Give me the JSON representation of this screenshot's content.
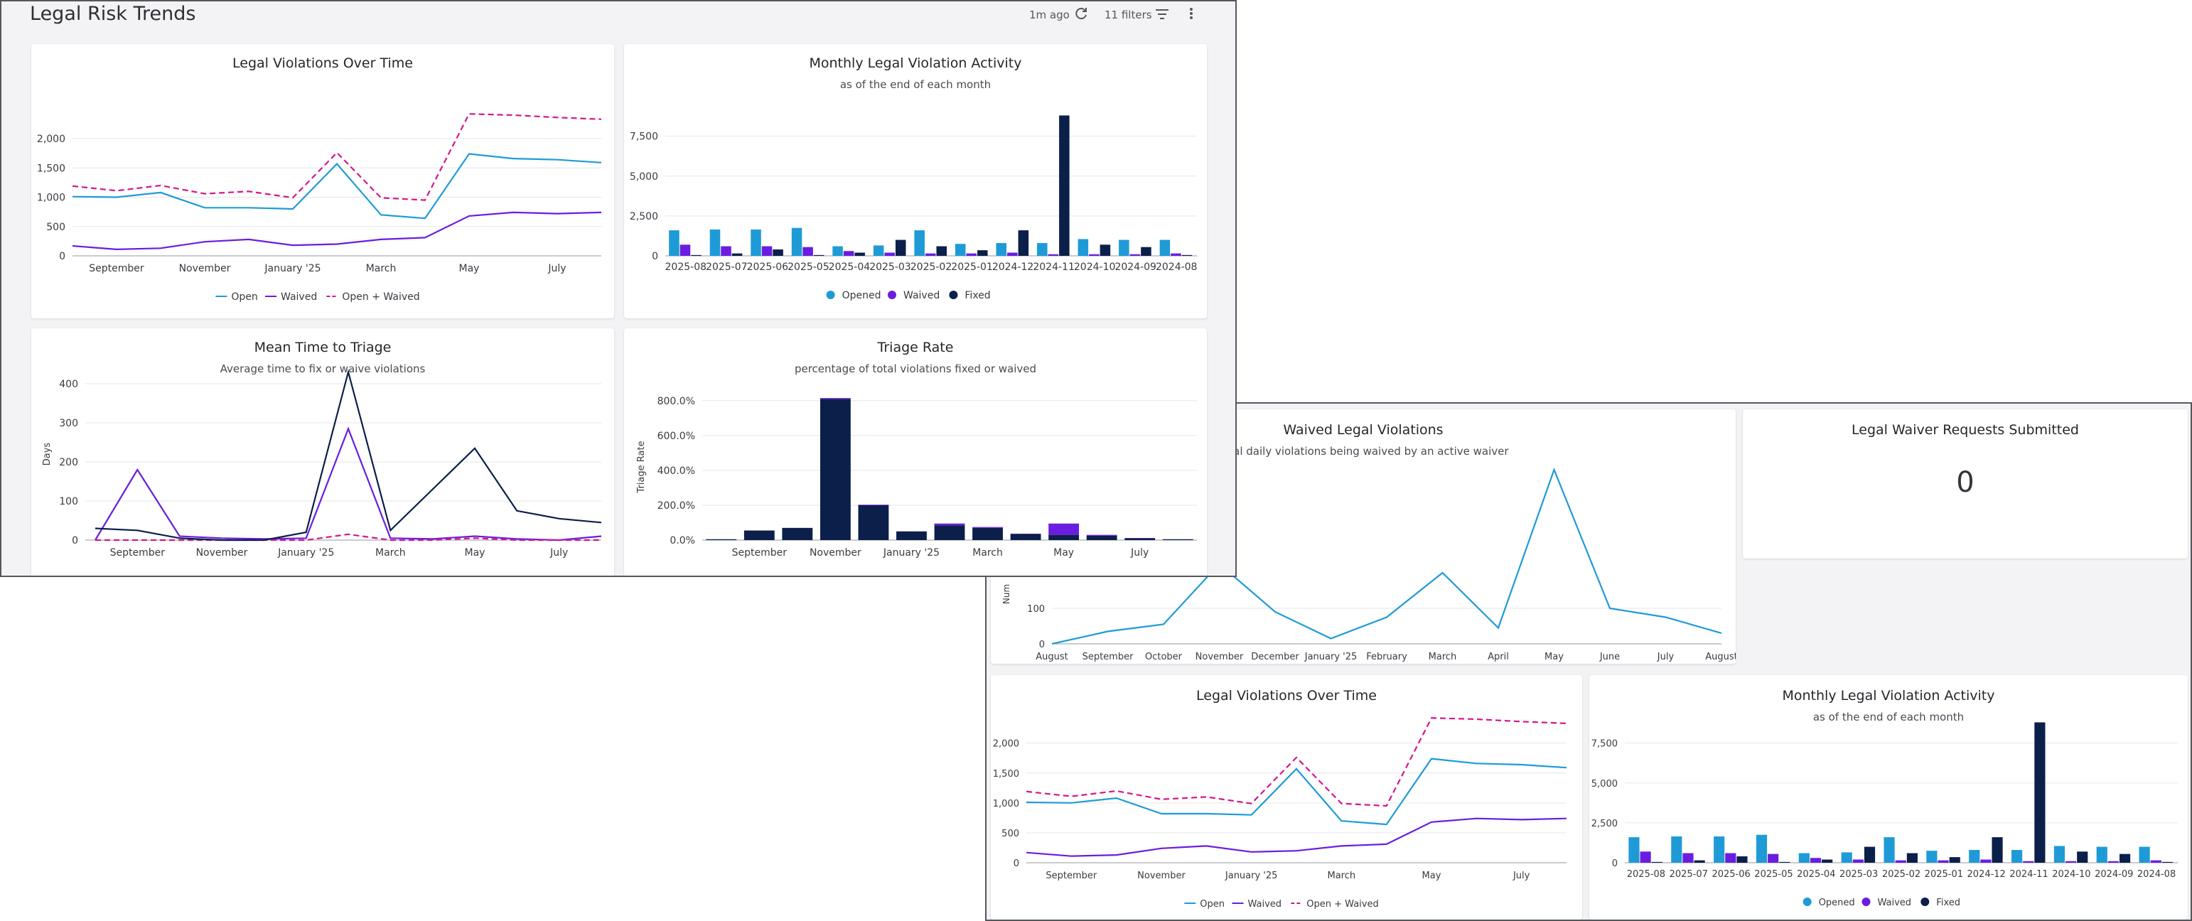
{
  "window_a": {
    "title": "Legal Risk Trends",
    "updated": "1m ago",
    "filters": "11 filters"
  },
  "window_b": {
    "waived_card": {
      "title": "Waived Legal Violations",
      "subtitle": "Total daily violations being waived by an active waiver",
      "ylabel": "Num"
    },
    "requests_card": {
      "title": "Legal Waiver Requests Submitted",
      "value": "0"
    }
  },
  "colors": {
    "open": "#1e9bd7",
    "waived": "#6a1de0",
    "combined": "#d6158a",
    "fixed": "#0c1f4a",
    "grid": "#e6e6ea",
    "axis": "#9a9aa0"
  },
  "icons": [
    "refresh-icon",
    "filter-icon",
    "more-vert-icon"
  ],
  "chart_data": [
    {
      "id": "violations_over_time",
      "type": "line",
      "title": "Legal Violations Over Time",
      "x": [
        "2024-08",
        "2024-09",
        "2024-10",
        "2024-11",
        "2024-12",
        "2025-01",
        "2025-02",
        "2025-03",
        "2025-04",
        "2025-05",
        "2025-06",
        "2025-07",
        "2025-08"
      ],
      "xticks": [
        "September",
        "November",
        "January '25",
        "March",
        "May",
        "July"
      ],
      "yticks": [
        "0",
        "500",
        "1,000",
        "1,500",
        "2,000"
      ],
      "ylim": [
        0,
        2400
      ],
      "series": [
        {
          "name": "Open",
          "values": [
            1010,
            1000,
            1080,
            820,
            820,
            800,
            1570,
            700,
            640,
            1740,
            1660,
            1640,
            1590
          ]
        },
        {
          "name": "Waived",
          "values": [
            170,
            110,
            130,
            240,
            280,
            180,
            200,
            280,
            310,
            680,
            740,
            720,
            740
          ]
        },
        {
          "name": "Open + Waived",
          "values": [
            1190,
            1110,
            1200,
            1060,
            1100,
            990,
            1760,
            990,
            950,
            2420,
            2400,
            2360,
            2330
          ]
        }
      ]
    },
    {
      "id": "monthly_activity",
      "type": "bar",
      "title": "Monthly Legal Violation Activity",
      "subtitle": "as of the end of each month",
      "categories": [
        "2025-08",
        "2025-07",
        "2025-06",
        "2025-05",
        "2025-04",
        "2025-03",
        "2025-02",
        "2025-01",
        "2024-12",
        "2024-11",
        "2024-10",
        "2024-09",
        "2024-08"
      ],
      "yticks": [
        "0",
        "2,500",
        "5,000",
        "7,500"
      ],
      "ylim": [
        0,
        9000
      ],
      "series": [
        {
          "name": "Opened",
          "values": [
            1600,
            1650,
            1650,
            1750,
            600,
            650,
            1600,
            750,
            800,
            800,
            1050,
            1000,
            1000
          ]
        },
        {
          "name": "Waived",
          "values": [
            700,
            600,
            600,
            550,
            300,
            200,
            150,
            150,
            200,
            100,
            100,
            100,
            150
          ]
        },
        {
          "name": "Fixed",
          "values": [
            50,
            150,
            400,
            50,
            200,
            1000,
            600,
            350,
            1600,
            8800,
            700,
            550,
            50
          ]
        }
      ]
    },
    {
      "id": "mean_time_to_triage",
      "type": "line",
      "title": "Mean Time to Triage",
      "subtitle": "Average time to fix or waive violations",
      "ylabel": "Days",
      "xticks": [
        "September",
        "November",
        "January '25",
        "March",
        "May",
        "July"
      ],
      "yticks": [
        "0",
        "100",
        "200",
        "300",
        "400"
      ],
      "ylim": [
        0,
        440
      ],
      "series": [
        {
          "values": [
            0,
            180,
            10,
            5,
            3,
            5,
            285,
            5,
            3,
            10,
            3,
            0,
            10
          ]
        },
        {
          "values": [
            0,
            0,
            0,
            0,
            0,
            0,
            15,
            0,
            0,
            5,
            0,
            0,
            0
          ]
        },
        {
          "values": [
            30,
            25,
            5,
            0,
            0,
            20,
            430,
            25,
            130,
            235,
            75,
            55,
            45
          ]
        }
      ]
    },
    {
      "id": "triage_rate",
      "type": "bar",
      "title": "Triage Rate",
      "subtitle": "percentage of total violations fixed or waived",
      "ylabel": "Triage Rate",
      "xticks": [
        "September",
        "November",
        "January '25",
        "March",
        "May",
        "July"
      ],
      "yticks": [
        "0.0%",
        "200.0%",
        "400.0%",
        "600.0%",
        "800.0%"
      ],
      "ylim": [
        0,
        840
      ],
      "series": [
        {
          "name": "Fixed",
          "values": [
            5,
            55,
            70,
            810,
            200,
            50,
            85,
            70,
            35,
            30,
            25,
            10,
            5
          ]
        },
        {
          "name": "Waived",
          "values": [
            0,
            0,
            0,
            5,
            3,
            0,
            10,
            5,
            2,
            65,
            5,
            2,
            0
          ]
        }
      ]
    },
    {
      "id": "waived_violations",
      "type": "line",
      "title": "Waived Legal Violations",
      "xticks": [
        "August",
        "September",
        "October",
        "November",
        "December",
        "January '25",
        "February",
        "March",
        "April",
        "May",
        "June",
        "July",
        "August"
      ],
      "yticks": [
        "0",
        "100"
      ],
      "ylim": [
        0,
        500
      ],
      "series": [
        {
          "values": [
            0,
            35,
            55,
            225,
            90,
            15,
            75,
            200,
            45,
            490,
            100,
            75,
            30
          ]
        }
      ]
    }
  ]
}
